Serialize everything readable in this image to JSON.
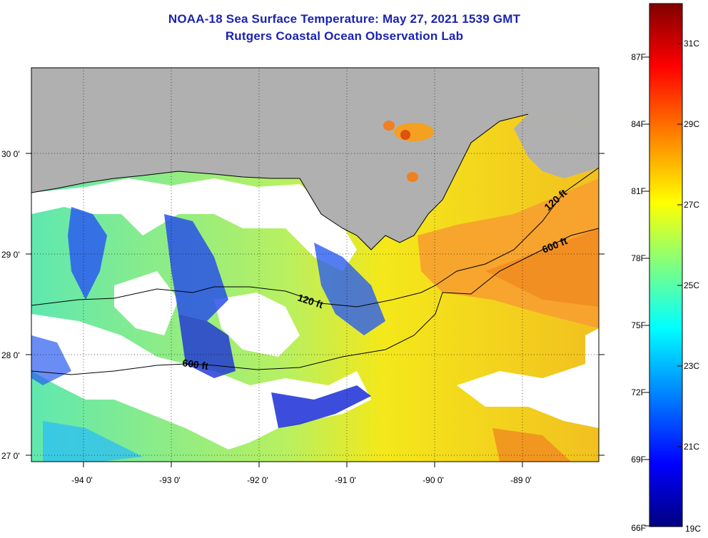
{
  "title": {
    "line1": "NOAA-18 Sea Surface Temperature:  May 27, 2021 1539 GMT",
    "line2": "Rutgers Coastal Ocean Observation Lab"
  },
  "map": {
    "x_ticks": [
      "-94 0'",
      "-93 0'",
      "-92 0'",
      "-91 0'",
      "-90 0'",
      "-89 0'"
    ],
    "y_ticks": [
      "30 0'",
      "29 0'",
      "28 0'",
      "27 0'"
    ],
    "lon_range": [
      -94.6,
      -88.4
    ],
    "lat_range": [
      26.93,
      30.85
    ],
    "grid": "dotted",
    "land_color": "#b0b0b0",
    "contour_labels": [
      {
        "text": "120 ft"
      },
      {
        "text": "600 ft"
      },
      {
        "text": "120 ft"
      },
      {
        "text": "600 ft"
      }
    ]
  },
  "colorbar": {
    "fahrenheit_labels": [
      "87F",
      "84F",
      "81F",
      "78F",
      "75F",
      "72F",
      "69F",
      "66F"
    ],
    "celsius_labels": [
      "31C",
      "29C",
      "27C",
      "25C",
      "23C",
      "21C",
      "19C"
    ],
    "colors": [
      "#800000",
      "#ff0000",
      "#ff8000",
      "#ffff00",
      "#80ff80",
      "#00ffff",
      "#0080ff",
      "#0000ff",
      "#000080"
    ]
  }
}
